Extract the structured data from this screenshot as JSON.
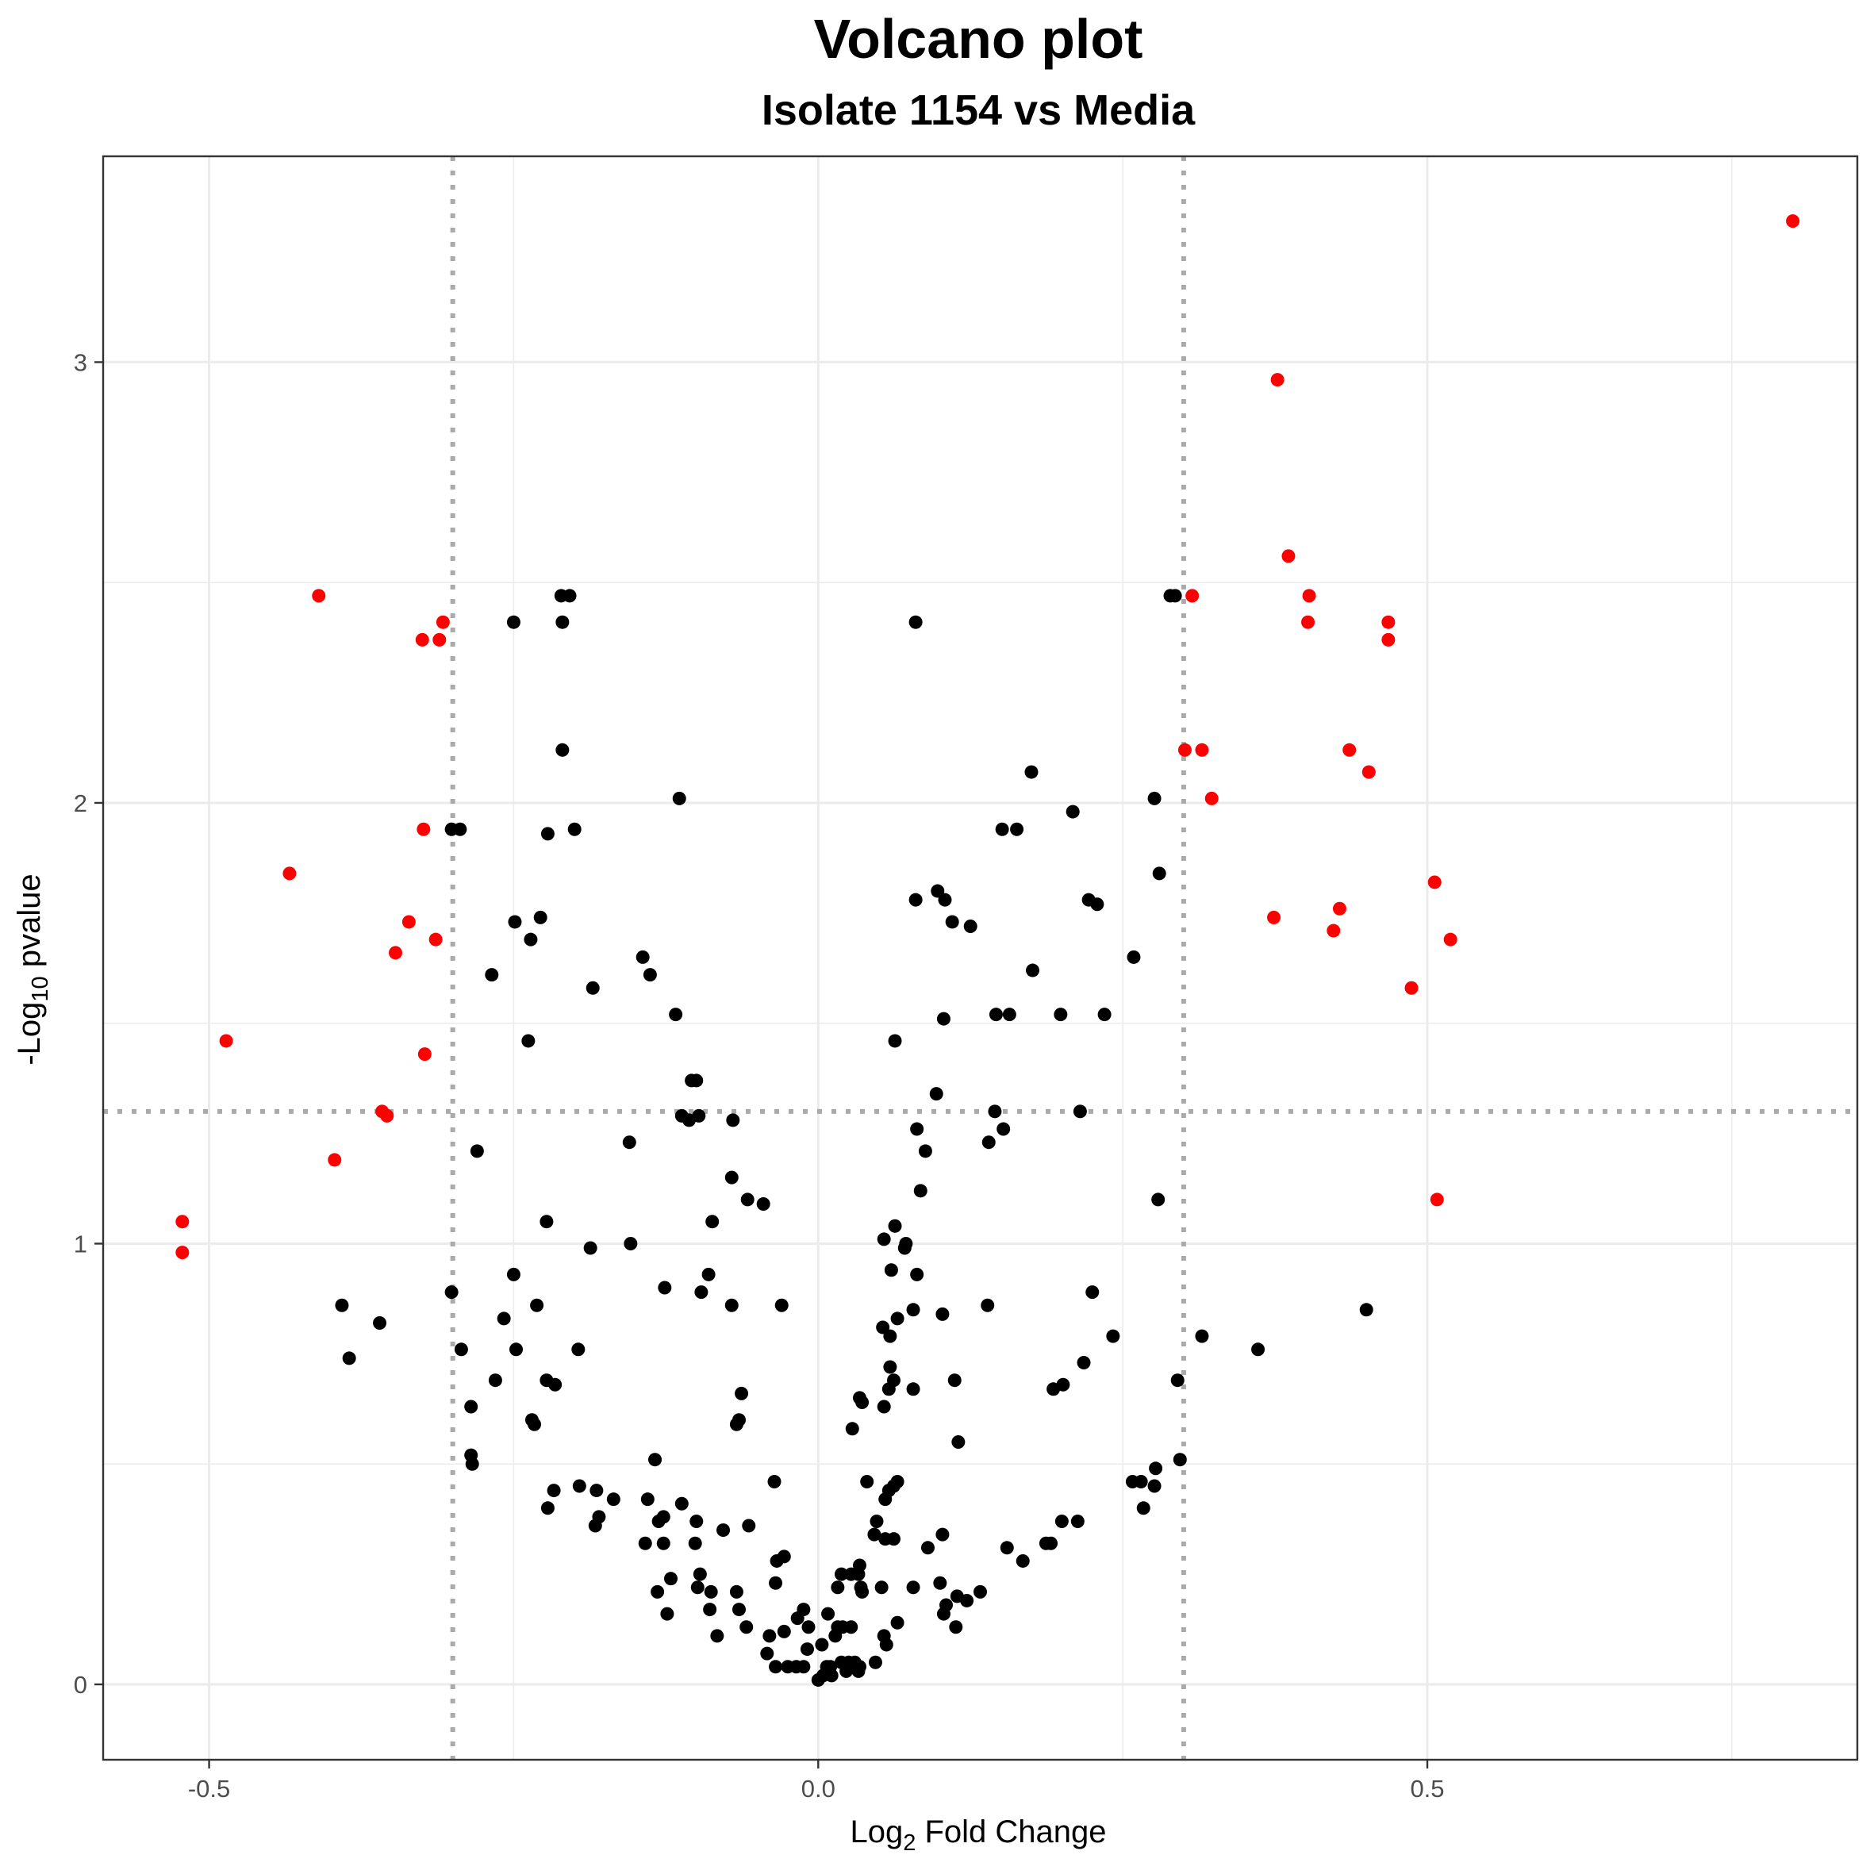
{
  "chart_data": {
    "type": "scatter",
    "title": "Volcano plot",
    "subtitle": "Isolate 1154 vs Media",
    "xlabel": {
      "prefix": "Log",
      "sub": "2",
      "suffix": " Fold Change"
    },
    "ylabel": {
      "prefix": "-Log",
      "sub": "10",
      "suffix": " pvalue"
    },
    "xlim": [
      -0.587,
      0.853
    ],
    "ylim": [
      -0.171,
      3.467
    ],
    "x_ticks": [
      -0.5,
      0.0,
      0.5
    ],
    "x_tick_labels": [
      "-0.5",
      "0.0",
      "0.5"
    ],
    "y_ticks": [
      0,
      1,
      2,
      3
    ],
    "y_tick_labels": [
      "0",
      "1",
      "2",
      "3"
    ],
    "grid": true,
    "thresholds": {
      "log2fc": [
        -0.3,
        0.3
      ],
      "neg_log10_p": 1.3
    },
    "colors": {
      "significant": "#ff0000",
      "not_significant": "#000000",
      "threshold_line": "#aaaaaa",
      "grid": "#ebebeb"
    },
    "series": [
      {
        "name": "significant",
        "color": "#ff0000",
        "points": [
          [
            0.8,
            3.32
          ],
          [
            0.377,
            2.96
          ],
          [
            0.386,
            2.56
          ],
          [
            0.403,
            2.47
          ],
          [
            0.402,
            2.41
          ],
          [
            0.468,
            2.41
          ],
          [
            0.468,
            2.37
          ],
          [
            0.436,
            2.12
          ],
          [
            0.452,
            2.07
          ],
          [
            0.307,
            2.47
          ],
          [
            0.301,
            2.12
          ],
          [
            0.315,
            2.12
          ],
          [
            0.323,
            2.01
          ],
          [
            0.506,
            1.82
          ],
          [
            0.428,
            1.76
          ],
          [
            0.374,
            1.74
          ],
          [
            0.423,
            1.71
          ],
          [
            0.519,
            1.69
          ],
          [
            0.487,
            1.58
          ],
          [
            0.508,
            1.1
          ],
          [
            -0.41,
            2.47
          ],
          [
            -0.308,
            2.41
          ],
          [
            -0.325,
            2.37
          ],
          [
            -0.311,
            2.37
          ],
          [
            -0.324,
            1.94
          ],
          [
            -0.434,
            1.84
          ],
          [
            -0.336,
            1.73
          ],
          [
            -0.347,
            1.66
          ],
          [
            -0.314,
            1.69
          ],
          [
            -0.486,
            1.46
          ],
          [
            -0.323,
            1.43
          ],
          [
            -0.358,
            1.3
          ],
          [
            -0.354,
            1.29
          ],
          [
            -0.397,
            1.19
          ],
          [
            -0.522,
            1.05
          ],
          [
            -0.522,
            0.98
          ]
        ]
      },
      {
        "name": "not significant",
        "color": "#000000",
        "points": [
          [
            -0.211,
            2.47
          ],
          [
            -0.204,
            2.47
          ],
          [
            -0.25,
            2.41
          ],
          [
            -0.21,
            2.41
          ],
          [
            -0.21,
            2.12
          ],
          [
            -0.301,
            1.94
          ],
          [
            -0.294,
            1.94
          ],
          [
            -0.2,
            1.94
          ],
          [
            -0.222,
            1.93
          ],
          [
            -0.114,
            2.01
          ],
          [
            -0.228,
            1.74
          ],
          [
            -0.249,
            1.73
          ],
          [
            -0.236,
            1.69
          ],
          [
            -0.268,
            1.61
          ],
          [
            -0.144,
            1.65
          ],
          [
            -0.138,
            1.61
          ],
          [
            -0.185,
            1.58
          ],
          [
            -0.117,
            1.52
          ],
          [
            -0.238,
            1.46
          ],
          [
            -0.104,
            1.37
          ],
          [
            -0.1,
            1.37
          ],
          [
            -0.112,
            1.29
          ],
          [
            -0.106,
            1.28
          ],
          [
            -0.098,
            1.29
          ],
          [
            -0.07,
            1.28
          ],
          [
            -0.155,
            1.23
          ],
          [
            -0.28,
            1.21
          ],
          [
            -0.071,
            1.15
          ],
          [
            -0.058,
            1.1
          ],
          [
            -0.045,
            1.09
          ],
          [
            -0.223,
            1.05
          ],
          [
            -0.087,
            1.05
          ],
          [
            -0.187,
            0.99
          ],
          [
            -0.154,
            1.0
          ],
          [
            -0.301,
            0.89
          ],
          [
            -0.25,
            0.93
          ],
          [
            -0.126,
            0.9
          ],
          [
            -0.096,
            0.89
          ],
          [
            -0.09,
            0.93
          ],
          [
            -0.071,
            0.86
          ],
          [
            -0.03,
            0.86
          ],
          [
            -0.231,
            0.86
          ],
          [
            -0.258,
            0.83
          ],
          [
            -0.391,
            0.86
          ],
          [
            -0.36,
            0.82
          ],
          [
            -0.385,
            0.74
          ],
          [
            -0.293,
            0.76
          ],
          [
            -0.248,
            0.76
          ],
          [
            -0.197,
            0.76
          ],
          [
            -0.265,
            0.69
          ],
          [
            -0.223,
            0.69
          ],
          [
            -0.216,
            0.68
          ],
          [
            -0.285,
            0.63
          ],
          [
            -0.235,
            0.6
          ],
          [
            -0.233,
            0.59
          ],
          [
            -0.063,
            0.66
          ],
          [
            -0.065,
            0.6
          ],
          [
            -0.067,
            0.59
          ],
          [
            -0.285,
            0.52
          ],
          [
            -0.284,
            0.5
          ],
          [
            -0.134,
            0.51
          ],
          [
            -0.036,
            0.46
          ],
          [
            -0.196,
            0.45
          ],
          [
            -0.217,
            0.44
          ],
          [
            -0.222,
            0.4
          ],
          [
            -0.182,
            0.44
          ],
          [
            -0.18,
            0.38
          ],
          [
            -0.183,
            0.36
          ],
          [
            -0.168,
            0.42
          ],
          [
            -0.14,
            0.42
          ],
          [
            -0.112,
            0.41
          ],
          [
            -0.127,
            0.38
          ],
          [
            -0.131,
            0.37
          ],
          [
            -0.1,
            0.37
          ],
          [
            -0.057,
            0.36
          ],
          [
            -0.078,
            0.35
          ],
          [
            -0.142,
            0.32
          ],
          [
            -0.127,
            0.32
          ],
          [
            -0.101,
            0.32
          ],
          [
            -0.034,
            0.28
          ],
          [
            -0.028,
            0.29
          ],
          [
            -0.121,
            0.24
          ],
          [
            -0.132,
            0.21
          ],
          [
            -0.097,
            0.25
          ],
          [
            -0.099,
            0.22
          ],
          [
            -0.088,
            0.21
          ],
          [
            -0.067,
            0.21
          ],
          [
            -0.035,
            0.23
          ],
          [
            -0.089,
            0.17
          ],
          [
            -0.065,
            0.17
          ],
          [
            -0.124,
            0.16
          ],
          [
            -0.059,
            0.13
          ],
          [
            -0.083,
            0.11
          ],
          [
            -0.04,
            0.11
          ],
          [
            -0.028,
            0.12
          ],
          [
            -0.017,
            0.15
          ],
          [
            -0.012,
            0.17
          ],
          [
            -0.042,
            0.07
          ],
          [
            -0.035,
            0.04
          ],
          [
            -0.025,
            0.04
          ],
          [
            -0.018,
            0.04
          ],
          [
            -0.012,
            0.04
          ],
          [
            -0.009,
            0.08
          ],
          [
            -0.008,
            0.13
          ],
          [
            0.003,
            0.09
          ],
          [
            0.008,
            0.16
          ],
          [
            0.014,
            0.11
          ],
          [
            0.016,
            0.13
          ],
          [
            0.02,
            0.13
          ],
          [
            0.027,
            0.13
          ],
          [
            0.0,
            0.01
          ],
          [
            0.004,
            0.02
          ],
          [
            0.007,
            0.04
          ],
          [
            0.01,
            0.04
          ],
          [
            0.011,
            0.02
          ],
          [
            0.019,
            0.05
          ],
          [
            0.023,
            0.03
          ],
          [
            0.025,
            0.05
          ],
          [
            0.03,
            0.05
          ],
          [
            0.033,
            0.03
          ],
          [
            0.034,
            0.04
          ],
          [
            0.047,
            0.05
          ],
          [
            0.016,
            0.22
          ],
          [
            0.019,
            0.25
          ],
          [
            0.027,
            0.25
          ],
          [
            0.033,
            0.25
          ],
          [
            0.035,
            0.22
          ],
          [
            0.034,
            0.27
          ],
          [
            0.036,
            0.21
          ],
          [
            0.056,
            0.09
          ],
          [
            0.054,
            0.11
          ],
          [
            0.065,
            0.14
          ],
          [
            0.052,
            0.22
          ],
          [
            0.078,
            0.22
          ],
          [
            0.1,
            0.23
          ],
          [
            0.105,
            0.18
          ],
          [
            0.103,
            0.16
          ],
          [
            0.113,
            0.13
          ],
          [
            0.114,
            0.2
          ],
          [
            0.122,
            0.19
          ],
          [
            0.133,
            0.21
          ],
          [
            0.028,
            0.58
          ],
          [
            0.034,
            0.65
          ],
          [
            0.036,
            0.64
          ],
          [
            0.04,
            0.46
          ],
          [
            0.058,
            0.44
          ],
          [
            0.062,
            0.45
          ],
          [
            0.055,
            0.42
          ],
          [
            0.065,
            0.46
          ],
          [
            0.048,
            0.37
          ],
          [
            0.046,
            0.34
          ],
          [
            0.055,
            0.33
          ],
          [
            0.062,
            0.33
          ],
          [
            0.09,
            0.31
          ],
          [
            0.102,
            0.34
          ],
          [
            0.155,
            0.31
          ],
          [
            0.168,
            0.28
          ],
          [
            0.187,
            0.32
          ],
          [
            0.191,
            0.32
          ],
          [
            0.2,
            0.37
          ],
          [
            0.213,
            0.37
          ],
          [
            0.054,
            0.63
          ],
          [
            0.058,
            0.67
          ],
          [
            0.059,
            0.72
          ],
          [
            0.062,
            0.69
          ],
          [
            0.078,
            0.67
          ],
          [
            0.112,
            0.69
          ],
          [
            0.193,
            0.67
          ],
          [
            0.201,
            0.68
          ],
          [
            0.218,
            0.73
          ],
          [
            0.115,
            0.55
          ],
          [
            0.242,
            0.79
          ],
          [
            0.225,
            0.89
          ],
          [
            0.053,
            0.81
          ],
          [
            0.059,
            0.79
          ],
          [
            0.065,
            0.83
          ],
          [
            0.078,
            0.85
          ],
          [
            0.102,
            0.84
          ],
          [
            0.139,
            0.86
          ],
          [
            0.06,
            0.94
          ],
          [
            0.081,
            0.93
          ],
          [
            0.054,
            1.01
          ],
          [
            0.071,
            0.99
          ],
          [
            0.072,
            1.0
          ],
          [
            0.063,
            1.04
          ],
          [
            0.084,
            1.12
          ],
          [
            0.088,
            1.21
          ],
          [
            0.081,
            1.26
          ],
          [
            0.14,
            1.23
          ],
          [
            0.152,
            1.26
          ],
          [
            0.145,
            1.3
          ],
          [
            0.215,
            1.3
          ],
          [
            0.097,
            1.34
          ],
          [
            0.063,
            1.46
          ],
          [
            0.103,
            1.51
          ],
          [
            0.146,
            1.52
          ],
          [
            0.157,
            1.52
          ],
          [
            0.199,
            1.52
          ],
          [
            0.235,
            1.52
          ],
          [
            0.176,
            1.62
          ],
          [
            0.259,
            1.65
          ],
          [
            0.098,
            1.8
          ],
          [
            0.104,
            1.78
          ],
          [
            0.08,
            1.78
          ],
          [
            0.11,
            1.73
          ],
          [
            0.125,
            1.72
          ],
          [
            0.222,
            1.78
          ],
          [
            0.229,
            1.77
          ],
          [
            0.28,
            1.84
          ],
          [
            0.151,
            1.94
          ],
          [
            0.163,
            1.94
          ],
          [
            0.175,
            2.07
          ],
          [
            0.209,
            1.98
          ],
          [
            0.276,
            2.01
          ],
          [
            0.08,
            2.41
          ],
          [
            0.289,
            2.47
          ],
          [
            0.293,
            2.47
          ],
          [
            0.279,
            1.1
          ],
          [
            0.315,
            0.79
          ],
          [
            0.361,
            0.76
          ],
          [
            0.45,
            0.85
          ],
          [
            0.295,
            0.69
          ],
          [
            0.297,
            0.51
          ],
          [
            0.258,
            0.46
          ],
          [
            0.265,
            0.46
          ],
          [
            0.276,
            0.45
          ],
          [
            0.277,
            0.49
          ],
          [
            0.267,
            0.4
          ]
        ]
      }
    ]
  }
}
